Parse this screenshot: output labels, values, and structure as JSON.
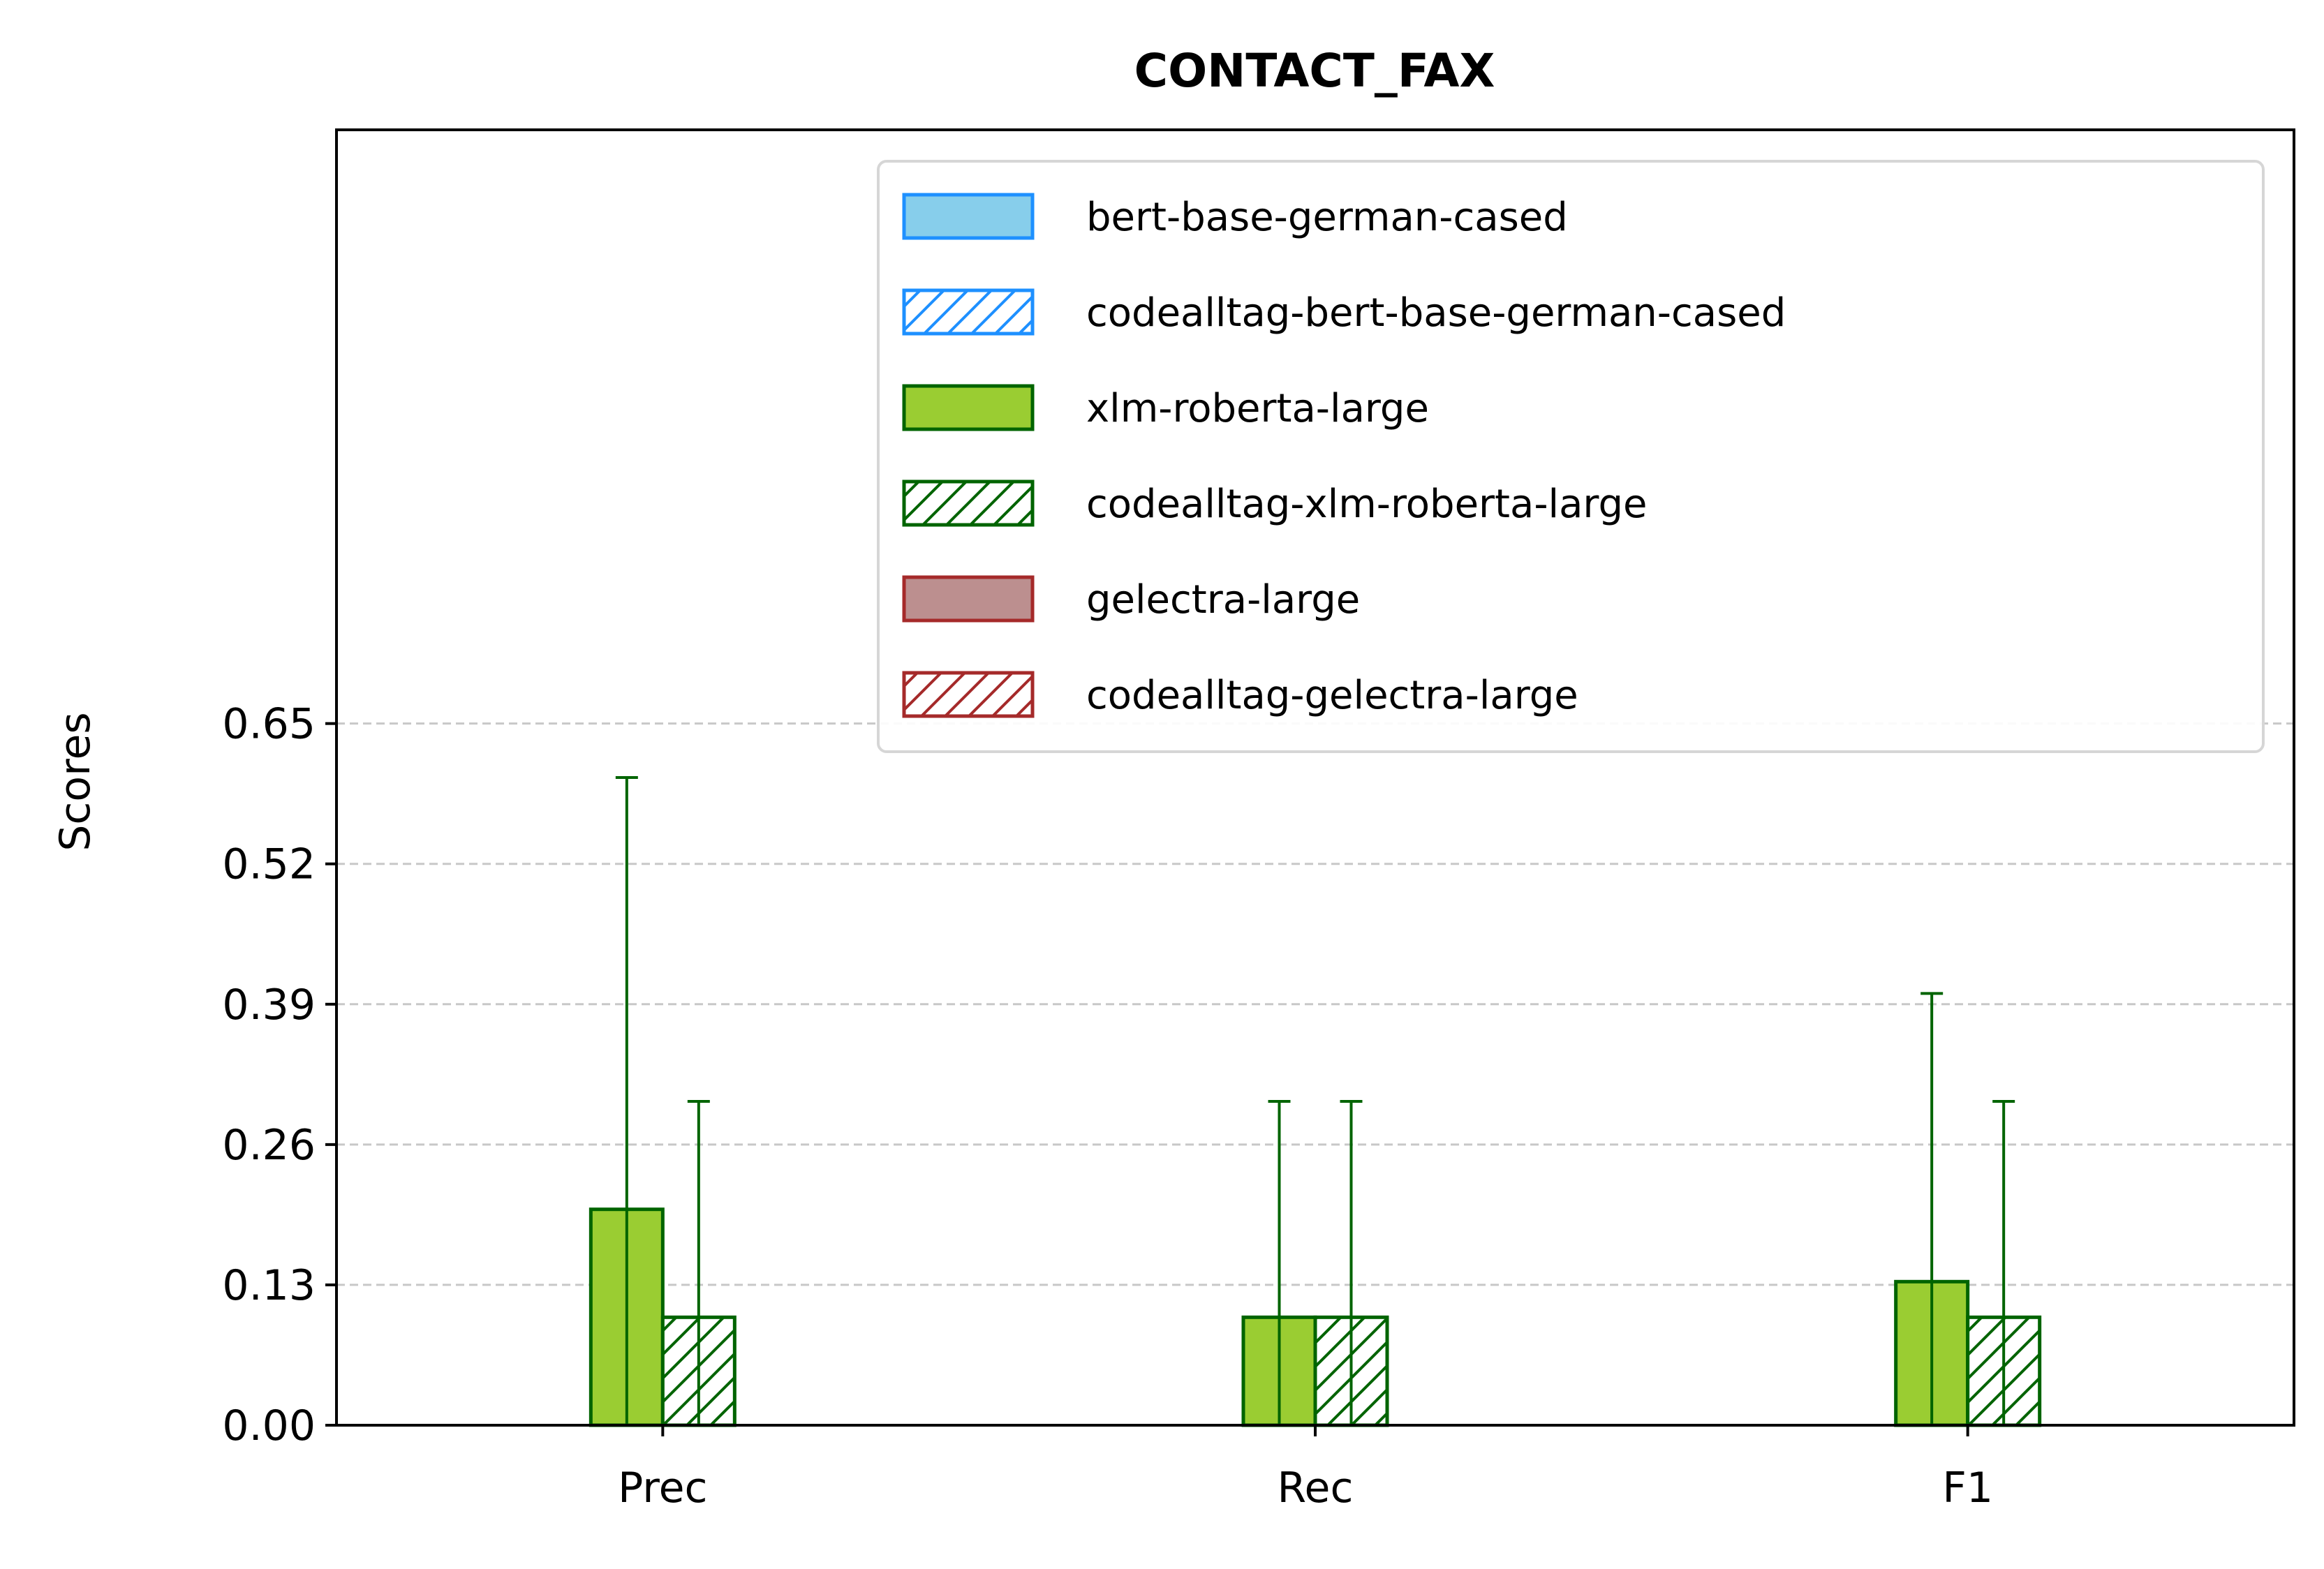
{
  "chart_data": {
    "type": "bar",
    "title": "CONTACT_FAX",
    "xlabel": "",
    "ylabel": "Scores",
    "categories": [
      "Prec",
      "Rec",
      "F1"
    ],
    "yticks": [
      "0.00",
      "0.13",
      "0.26",
      "0.39",
      "0.52",
      "0.65"
    ],
    "ylim": [
      0,
      1.2
    ],
    "grid": "y-dashed",
    "legend_position": "upper-right",
    "series": [
      {
        "name": "bert-base-german-cased",
        "values": [
          0,
          0,
          0
        ],
        "errors": [
          0,
          0,
          0
        ],
        "fill": "#87CEEB",
        "edge": "#1E90FF",
        "hatch": false
      },
      {
        "name": "codealltag-bert-base-german-cased",
        "values": [
          0,
          0,
          0
        ],
        "errors": [
          0,
          0,
          0
        ],
        "fill": "#ffffff",
        "edge": "#1E90FF",
        "hatch": true
      },
      {
        "name": "xlm-roberta-large",
        "values": [
          0.2,
          0.1,
          0.133
        ],
        "errors": [
          0.4,
          0.2,
          0.267
        ],
        "fill": "#9ACD32",
        "edge": "#006400",
        "hatch": false
      },
      {
        "name": "codealltag-xlm-roberta-large",
        "values": [
          0.1,
          0.1,
          0.1
        ],
        "errors": [
          0.2,
          0.2,
          0.2
        ],
        "fill": "#ffffff",
        "edge": "#006400",
        "hatch": true
      },
      {
        "name": "gelectra-large",
        "values": [
          0,
          0,
          0
        ],
        "errors": [
          0,
          0,
          0
        ],
        "fill": "#BC8F8F",
        "edge": "#A52A2A",
        "hatch": false
      },
      {
        "name": "codealltag-gelectra-large",
        "values": [
          0,
          0,
          0
        ],
        "errors": [
          0,
          0,
          0
        ],
        "fill": "#ffffff",
        "edge": "#A52A2A",
        "hatch": true
      }
    ]
  }
}
